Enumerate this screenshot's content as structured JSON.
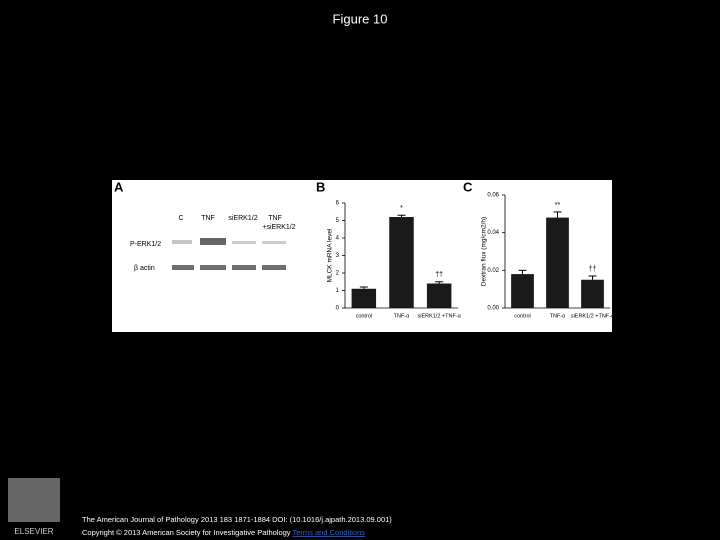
{
  "title": "Figure 10",
  "panel_a": {
    "letter": "A",
    "lane_labels": [
      "C",
      "TNF",
      "siERK1/2",
      "TNF",
      "+siERK1/2"
    ],
    "row_labels": [
      "P-ERK1/2",
      "β actin"
    ]
  },
  "chart_data": [
    {
      "type": "bar",
      "letter": "B",
      "y_label": "MLCK mRNA level",
      "categories": [
        "control",
        "TNF-α",
        "siERK1/2 +TNF-α"
      ],
      "values": [
        1.1,
        5.2,
        1.4
      ],
      "errors": [
        0.1,
        0.1,
        0.1
      ],
      "annotations": [
        null,
        "*",
        "††"
      ],
      "color": "#1a1a1a",
      "ylim": [
        0,
        6
      ],
      "yticks": [
        0,
        1,
        2,
        3,
        4,
        5,
        6
      ]
    },
    {
      "type": "bar",
      "letter": "C",
      "y_label": "Dextran flux (mg/cm2/h)",
      "categories": [
        "control",
        "TNF-α",
        "siERK1/2 +TNF-α"
      ],
      "values": [
        0.018,
        0.048,
        0.015
      ],
      "errors": [
        0.002,
        0.003,
        0.002
      ],
      "annotations": [
        null,
        "**",
        "††"
      ],
      "color": "#1a1a1a",
      "ylim": [
        0,
        0.06
      ],
      "yticks": [
        {
          "value": 0,
          "label": "0.00"
        },
        0.02,
        0.04,
        0.06
      ]
    }
  ],
  "footer": {
    "citation": "The American Journal of Pathology 2013 183 1871-1884 DOI: (10.1016/j.ajpath.2013.09.001)",
    "copyright": "Copyright © 2013 American Society for Investigative Pathology",
    "terms": "Terms and Conditions",
    "logo": "ELSEVIER"
  }
}
